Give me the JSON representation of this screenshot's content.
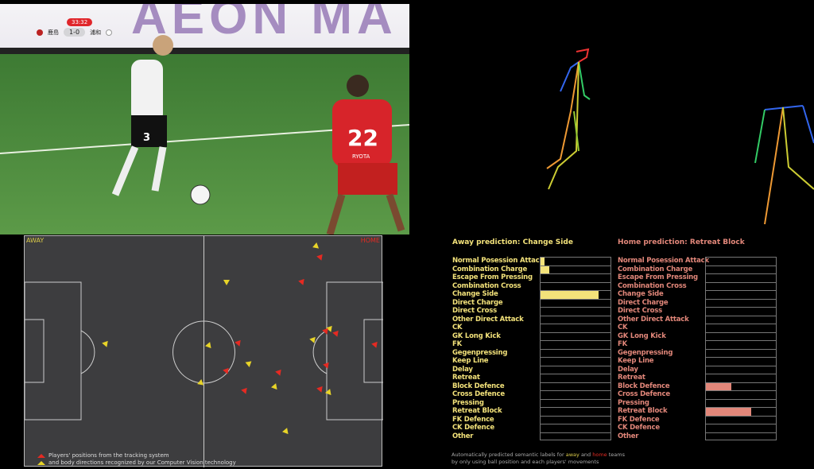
{
  "broadcast": {
    "banner": "AEON MA",
    "clock": "33:32",
    "home_team": "鹿島",
    "score": "1-0",
    "away_team": "浦和",
    "jersey_number": "22",
    "jersey_name": "RYOTA",
    "home_color": "#c0242b",
    "away_color": "#ffffff",
    "left_player_number": "3"
  },
  "pitch": {
    "away_label": "AWAY",
    "home_label": "HOME",
    "legend_line1": "Players' positions from the tracking system",
    "legend_line2": "and body directions recognized by our Computer Vision technology",
    "away_color": "#e8d428",
    "home_color": "#e52a22"
  },
  "labels": [
    "Normal Posession Attack",
    "Combination Charge",
    "Escape From Pressing",
    "Combination Cross",
    "Change Side",
    "Direct Charge",
    "Direct Cross",
    "Other Direct Attack",
    "CK",
    "GK Long Kick",
    "FK",
    "Gegenpressing",
    "Keep Line",
    "Delay",
    "Retreat",
    "Block Defence",
    "Cross Defence",
    "Pressing",
    "Retreat Block",
    "FK Defence",
    "CK Defence",
    "Other"
  ],
  "away": {
    "title": "Away prediction: Change Side",
    "color": "#f3e27a",
    "probabilities": [
      0.06,
      0.12,
      0,
      0,
      0.83,
      0,
      0,
      0,
      0,
      0,
      0,
      0,
      0,
      0,
      0,
      0,
      0,
      0,
      0,
      0,
      0,
      0
    ]
  },
  "home": {
    "title": "Home prediction: Retreat Block",
    "color": "#e2877a",
    "probabilities": [
      0,
      0,
      0,
      0,
      0,
      0,
      0,
      0,
      0,
      0,
      0,
      0,
      0,
      0,
      0,
      0.36,
      0,
      0,
      0.65,
      0,
      0,
      0
    ]
  },
  "footer": {
    "line1_a": "Automatically predicted semantic labels for ",
    "away_word": "away",
    "and": " and ",
    "home_word": "home",
    "teams": " teams",
    "line2": "by only using ball position and each players' movements"
  }
}
